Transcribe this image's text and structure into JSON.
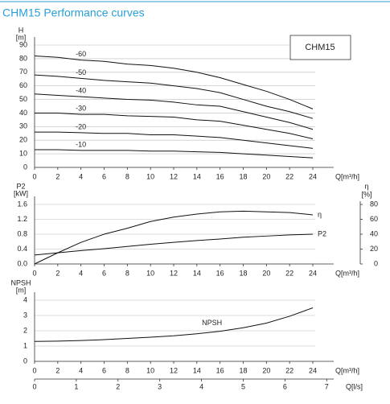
{
  "title": "CHM15 Performance curves",
  "chart_data": [
    {
      "type": "line",
      "ylabel": "H",
      "yunit": "[m]",
      "xlabel": "Q[m³/h]",
      "annotation": "CHM15",
      "x": [
        0,
        2,
        4,
        6,
        8,
        10,
        12,
        14,
        16,
        18,
        20,
        22,
        24
      ],
      "xlim": [
        0,
        24
      ],
      "xticks": [
        0,
        2,
        4,
        6,
        8,
        10,
        12,
        14,
        16,
        18,
        20,
        22,
        24
      ],
      "ylim": [
        0,
        90
      ],
      "yticks": [
        0,
        10,
        20,
        30,
        40,
        50,
        60,
        70,
        80,
        90
      ],
      "grid": true,
      "series": [
        {
          "name": "-60",
          "color": "#111111",
          "values": [
            82,
            81,
            79,
            78,
            76,
            75,
            73,
            70,
            66,
            61,
            56,
            50,
            43
          ]
        },
        {
          "name": "-50",
          "color": "#111111",
          "values": [
            68,
            67,
            65.5,
            64,
            63,
            62,
            60,
            58,
            55,
            50,
            45,
            41,
            36
          ]
        },
        {
          "name": "-40",
          "color": "#111111",
          "values": [
            54,
            53,
            52,
            51,
            50,
            49.5,
            48,
            46,
            45,
            41,
            37,
            33,
            28
          ]
        },
        {
          "name": "-30",
          "color": "#111111",
          "values": [
            40,
            40,
            39,
            39,
            38,
            37.5,
            37,
            35,
            34,
            31,
            28,
            25,
            21
          ]
        },
        {
          "name": "-20",
          "color": "#111111",
          "values": [
            26,
            26,
            25.5,
            25,
            25,
            24,
            24,
            23,
            22,
            20,
            18,
            16,
            14
          ]
        },
        {
          "name": "-10",
          "color": "#111111",
          "values": [
            13,
            13,
            12.5,
            12.5,
            12.5,
            12,
            12,
            11.5,
            11,
            10,
            9,
            8,
            7
          ]
        }
      ]
    },
    {
      "type": "line",
      "ylabel": "P2",
      "yunit": "[kW]",
      "y2label": "η",
      "y2unit": "[%]",
      "xlabel": "Q[m³/h]",
      "x": [
        0,
        2,
        4,
        6,
        8,
        10,
        12,
        14,
        16,
        18,
        20,
        22,
        24
      ],
      "xlim": [
        0,
        24
      ],
      "xticks": [
        0,
        2,
        4,
        6,
        8,
        10,
        12,
        14,
        16,
        18,
        20,
        22,
        24
      ],
      "ylim": [
        0,
        1.6
      ],
      "yticks": [
        {
          "value": 0,
          "label": "0.0"
        },
        0.4,
        0.8,
        1.2,
        1.6
      ],
      "y2lim": [
        0,
        80
      ],
      "y2ticks": [
        0,
        20,
        40,
        60,
        80
      ],
      "grid": true,
      "series": [
        {
          "name": "η",
          "color": "#111111",
          "axis": "y2",
          "values": [
            0,
            15,
            29,
            40,
            48,
            57,
            63,
            67,
            70,
            71,
            70,
            69,
            66
          ]
        },
        {
          "name": "P2",
          "color": "#111111",
          "values": [
            0.24,
            0.3,
            0.36,
            0.41,
            0.47,
            0.53,
            0.58,
            0.63,
            0.67,
            0.72,
            0.75,
            0.78,
            0.8
          ]
        }
      ]
    },
    {
      "type": "line",
      "ylabel": "NPSH",
      "yunit": "[m]",
      "xlabel": "Q[m³/h]",
      "x2label": "Q[l/s]",
      "x": [
        0,
        2,
        4,
        6,
        8,
        10,
        12,
        14,
        16,
        18,
        20,
        22,
        24
      ],
      "xlim": [
        0,
        24
      ],
      "xticks": [
        0,
        2,
        4,
        6,
        8,
        10,
        12,
        14,
        16,
        18,
        20,
        22,
        24
      ],
      "x2lim": [
        0,
        6.667
      ],
      "x2ticks": [
        0,
        1,
        2,
        3,
        4,
        5,
        6,
        7
      ],
      "ylim": [
        0,
        4
      ],
      "yticks": [
        0,
        1,
        2,
        3,
        4
      ],
      "grid": true,
      "series": [
        {
          "name": "NPSH",
          "color": "#111111",
          "values": [
            1.3,
            1.32,
            1.36,
            1.42,
            1.5,
            1.58,
            1.67,
            1.8,
            1.97,
            2.2,
            2.5,
            2.95,
            3.5
          ]
        }
      ]
    }
  ]
}
